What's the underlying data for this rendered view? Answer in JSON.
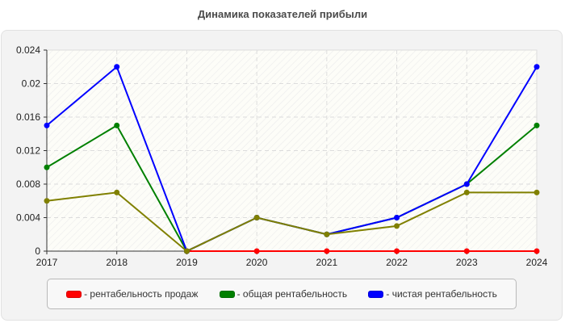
{
  "title": "Динамика показателей прибыли",
  "legend": [
    {
      "label": "- рентабельность продаж",
      "color": "#ff0000"
    },
    {
      "label": "- общая рентабельность",
      "color": "#008000"
    },
    {
      "label": "- чистая рентабельность",
      "color": "#0000ff"
    }
  ],
  "chart_data": {
    "type": "line",
    "title": "Динамика показателей прибыли",
    "xlabel": "",
    "ylabel": "",
    "categories": [
      "2017",
      "2018",
      "2019",
      "2020",
      "2021",
      "2022",
      "2023",
      "2024"
    ],
    "ylim": [
      0,
      0.024
    ],
    "yticks": [
      "0",
      "0.004",
      "0.008",
      "0.012",
      "0.016",
      "0.02",
      "0.024"
    ],
    "grid": true,
    "legend_position": "bottom",
    "series": [
      {
        "name": "рентабельность продаж",
        "color": "#ff0000",
        "values": [
          null,
          null,
          0,
          0,
          0,
          0,
          0,
          0
        ]
      },
      {
        "name": "общая рентабельность",
        "color": "#008000",
        "values": [
          0.01,
          0.015,
          0,
          0.004,
          0.002,
          0.004,
          0.008,
          0.015
        ]
      },
      {
        "name": "чистая рентабельность",
        "color": "#0000ff",
        "values": [
          0.015,
          0.022,
          0,
          0.004,
          0.002,
          0.004,
          0.008,
          0.022
        ]
      },
      {
        "name": "",
        "color": "#808000",
        "values": [
          0.006,
          0.007,
          0,
          0.004,
          0.002,
          0.003,
          0.007,
          0.007
        ]
      }
    ]
  }
}
